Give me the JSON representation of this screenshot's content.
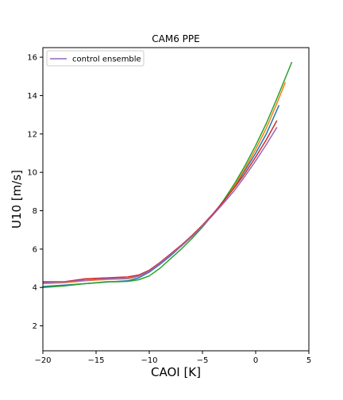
{
  "chart_data": {
    "type": "line",
    "title": "CAM6 PPE",
    "xlabel": "CAOI [K]",
    "ylabel": "U10 [m/s]",
    "xlim": [
      -20,
      5
    ],
    "ylim": [
      0.7,
      16.5
    ],
    "xticks": [
      -20,
      -15,
      -10,
      -5,
      0,
      5
    ],
    "yticks": [
      2,
      4,
      6,
      8,
      10,
      12,
      14,
      16
    ],
    "grid": false,
    "legend": {
      "placement": "top-left",
      "entries": [
        {
          "label": "control ensemble",
          "color": "#9467bd"
        }
      ]
    },
    "series": [
      {
        "color": "#1f77b4",
        "x": [
          -20,
          -18,
          -16,
          -14,
          -12,
          -11,
          -10,
          -9,
          -8,
          -7,
          -6,
          -5,
          -4,
          -3,
          -2,
          -1,
          0,
          1,
          2.2
        ],
        "y": [
          4.05,
          4.12,
          4.2,
          4.28,
          4.35,
          4.5,
          4.8,
          5.2,
          5.65,
          6.15,
          6.65,
          7.2,
          7.8,
          8.5,
          9.25,
          10.1,
          11.0,
          12.0,
          13.5
        ]
      },
      {
        "color": "#ff7f0e",
        "x": [
          -20,
          -18,
          -16,
          -14,
          -12,
          -11,
          -10,
          -9,
          -8,
          -7,
          -6,
          -5,
          -4,
          -3,
          -2,
          -1,
          0,
          1,
          2,
          2.8
        ],
        "y": [
          4.2,
          4.25,
          4.35,
          4.42,
          4.45,
          4.58,
          4.85,
          5.25,
          5.7,
          6.15,
          6.65,
          7.2,
          7.8,
          8.5,
          9.3,
          10.2,
          11.2,
          12.3,
          13.6,
          14.7
        ]
      },
      {
        "color": "#2ca02c",
        "x": [
          -20,
          -18,
          -16,
          -14,
          -13,
          -12,
          -11,
          -10,
          -9,
          -8,
          -7,
          -6,
          -5,
          -4,
          -3,
          -2,
          -1,
          0,
          1,
          2,
          3.4
        ],
        "y": [
          4.0,
          4.08,
          4.2,
          4.3,
          4.3,
          4.32,
          4.4,
          4.6,
          5.0,
          5.5,
          6.0,
          6.55,
          7.15,
          7.8,
          8.55,
          9.4,
          10.35,
          11.4,
          12.55,
          13.85,
          15.75
        ]
      },
      {
        "color": "#d62728",
        "x": [
          -20,
          -18,
          -16,
          -14,
          -12,
          -11,
          -10,
          -9,
          -8,
          -7,
          -6,
          -5,
          -4,
          -3,
          -2,
          -1,
          0,
          1,
          2.0
        ],
        "y": [
          4.3,
          4.3,
          4.45,
          4.5,
          4.55,
          4.65,
          4.9,
          5.3,
          5.75,
          6.2,
          6.7,
          7.25,
          7.85,
          8.5,
          9.2,
          9.95,
          10.8,
          11.7,
          12.7
        ]
      },
      {
        "name": "control ensemble",
        "color": "#9467bd",
        "x": [
          -20,
          -18,
          -16,
          -14,
          -12,
          -11,
          -10,
          -9,
          -8,
          -7,
          -6,
          -5,
          -4,
          -3,
          -2,
          -1,
          0,
          1,
          2.0
        ],
        "y": [
          4.25,
          4.28,
          4.38,
          4.45,
          4.48,
          4.6,
          4.85,
          5.25,
          5.7,
          6.15,
          6.65,
          7.2,
          7.78,
          8.4,
          9.05,
          9.8,
          10.6,
          11.45,
          12.35
        ]
      }
    ]
  }
}
